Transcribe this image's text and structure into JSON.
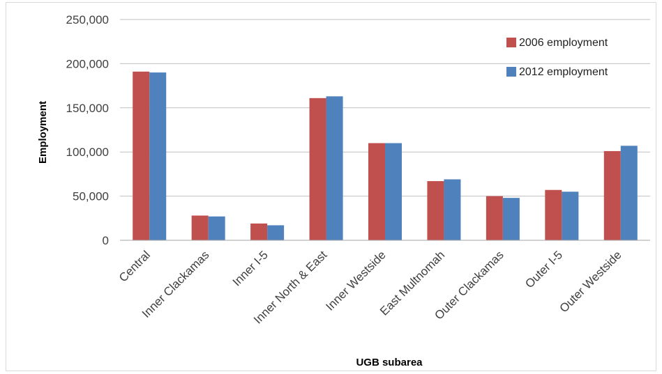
{
  "chart_data": {
    "type": "bar",
    "categories": [
      "Central",
      "Inner Clackamas",
      "Inner I-5",
      "Inner North & East",
      "Inner Westside",
      "East Multnomah",
      "Outer Clackamas",
      "Outer I-5",
      "Outer Westside"
    ],
    "series": [
      {
        "name": "2006 employment",
        "values": [
          191000,
          28000,
          19000,
          161000,
          110000,
          67000,
          50000,
          57000,
          101000
        ],
        "color": "#c0504d"
      },
      {
        "name": "2012 employment",
        "values": [
          190000,
          27000,
          17000,
          163000,
          110000,
          69000,
          48000,
          55000,
          107000
        ],
        "color": "#4f81bd"
      }
    ],
    "y_ticks": [
      "0",
      "50,000",
      "100,000",
      "150,000",
      "200,000",
      "250,000"
    ],
    "ylim": [
      0,
      250000
    ],
    "xlabel": "UGB subarea",
    "ylabel": "Employment",
    "grid": true,
    "legend_position": "top-right"
  }
}
